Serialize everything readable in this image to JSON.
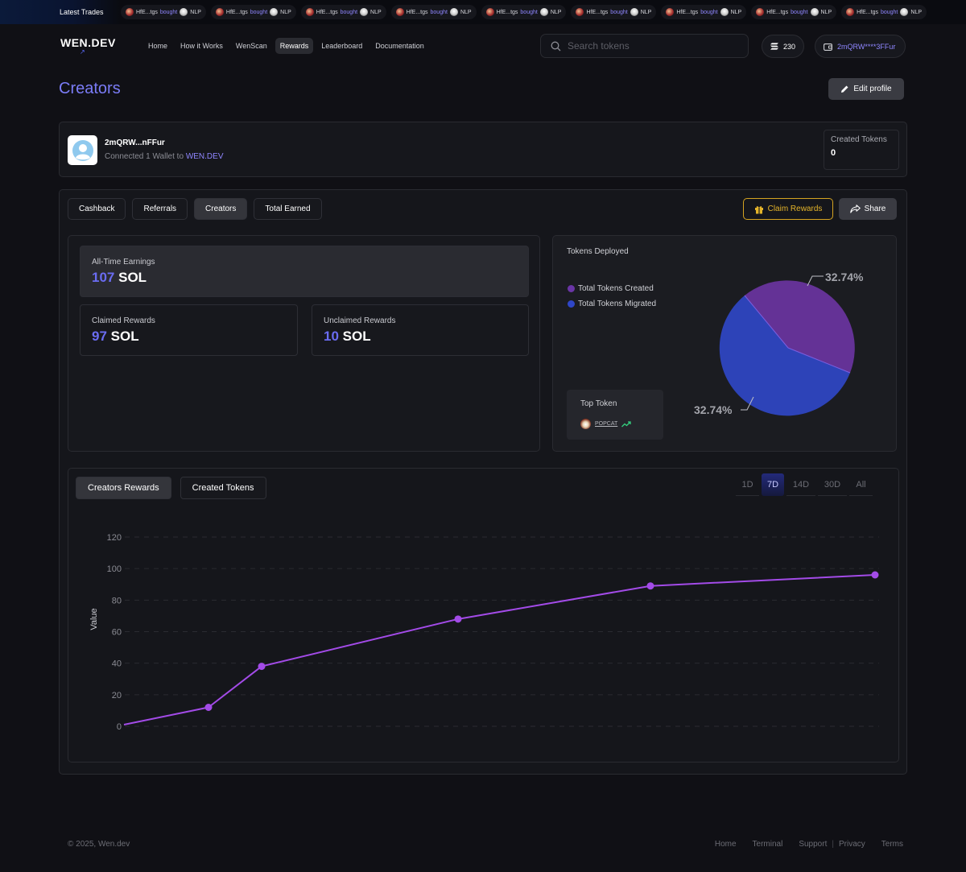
{
  "ticker": {
    "label": "Latest Trades",
    "trades": [
      {
        "token": "HfE...tgs",
        "action": "bought",
        "symbol": "NLP"
      },
      {
        "token": "HfE...tgs",
        "action": "bought",
        "symbol": "NLP"
      },
      {
        "token": "HfE...tgs",
        "action": "bought",
        "symbol": "NLP"
      },
      {
        "token": "HfE...tgs",
        "action": "bought",
        "symbol": "NLP"
      },
      {
        "token": "HfE...tgs",
        "action": "bought",
        "symbol": "NLP"
      },
      {
        "token": "HfE...tgs",
        "action": "bought",
        "symbol": "NLP"
      },
      {
        "token": "HfE...tgs",
        "action": "bought",
        "symbol": "NLP"
      },
      {
        "token": "HfE...tgs",
        "action": "bought",
        "symbol": "NLP"
      },
      {
        "token": "HfE...tgs",
        "action": "bought",
        "symbol": "NLP"
      }
    ]
  },
  "nav": {
    "logo": "WEN.DEV",
    "menu": [
      "Home",
      "How it Works",
      "WenScan",
      "Rewards",
      "Leaderboard",
      "Documentation"
    ],
    "active": "Rewards",
    "search_placeholder": "Search tokens",
    "balance": "230",
    "wallet": "2mQRW****3FFur"
  },
  "page": {
    "title": "Creators",
    "edit_profile": "Edit profile"
  },
  "profile": {
    "name": "2mQRW...nFFur",
    "connected_prefix": "Connected 1 Wallet to",
    "connected_site": "WEN.DEV",
    "created_tokens_label": "Created Tokens",
    "created_tokens_value": "0"
  },
  "tabs": [
    "Cashback",
    "Referrals",
    "Creators",
    "Total Earned"
  ],
  "active_tab": "Creators",
  "actions": {
    "claim": "Claim Rewards",
    "share": "Share"
  },
  "earnings": {
    "all_time_label": "All-Time Earnings",
    "all_time_value": "107",
    "claimed_label": "Claimed Rewards",
    "claimed_value": "97",
    "unclaimed_label": "Unclaimed Rewards",
    "unclaimed_value": "10",
    "unit": "SOL"
  },
  "deployed": {
    "title": "Tokens Deployed",
    "legend": [
      {
        "label": "Total Tokens Created",
        "color": "#6a35a6"
      },
      {
        "label": "Total Tokens Migrated",
        "color": "#2f46c8"
      }
    ],
    "pie_labels": [
      "32.74%",
      "32.74%"
    ],
    "top_token_label": "Top Token",
    "top_token": "POPCAT"
  },
  "chart_tabs": [
    "Creators Rewards",
    "Created Tokens"
  ],
  "active_chart_tab": "Creators Rewards",
  "ranges": [
    "1D",
    "7D",
    "14D",
    "30D",
    "All"
  ],
  "active_range": "7D",
  "chart_data": {
    "type": "line",
    "x": [
      0,
      1,
      2,
      3,
      4,
      5
    ],
    "values": [
      1,
      12,
      38,
      68,
      89,
      96
    ],
    "marked": [
      false,
      true,
      true,
      true,
      true,
      true
    ],
    "ylabel": "Value",
    "xlabel": "",
    "yticks": [
      0,
      20,
      40,
      60,
      80,
      100,
      120
    ],
    "ylim": [
      0,
      120
    ],
    "grid": true,
    "color": "#a34be8"
  },
  "footer": {
    "copyright": "© 2025, Wen.dev",
    "links": [
      "Home",
      "Terminal",
      "Support",
      "Privacy",
      "Terms"
    ]
  }
}
